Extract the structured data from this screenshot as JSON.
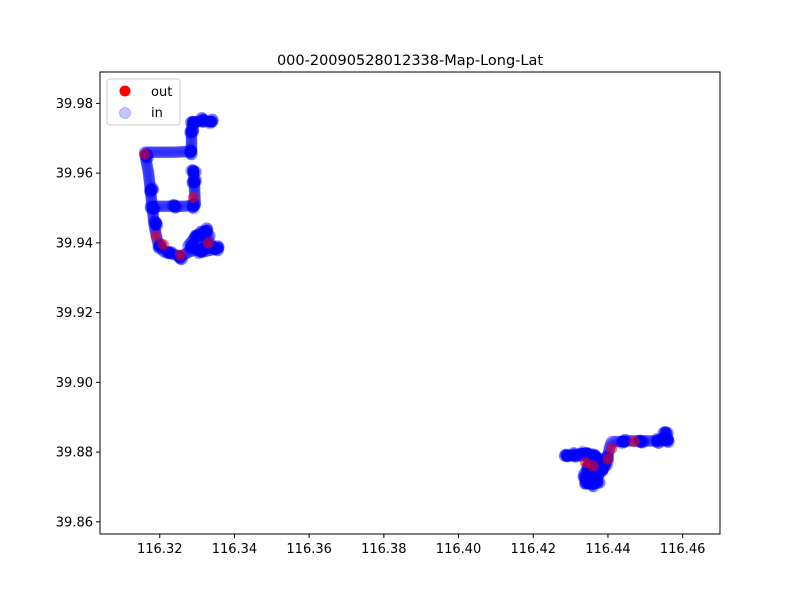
{
  "chart_data": {
    "type": "scatter",
    "title": "000-20090528012338-Map-Long-Lat",
    "xlabel": "",
    "ylabel": "",
    "xlim": [
      116.304,
      116.47
    ],
    "ylim": [
      39.8565,
      39.989
    ],
    "x_ticks": [
      116.32,
      116.34,
      116.36,
      116.38,
      116.4,
      116.42,
      116.44,
      116.46
    ],
    "x_tick_labels": [
      "116.32",
      "116.34",
      "116.36",
      "116.38",
      "116.40",
      "116.42",
      "116.44",
      "116.46"
    ],
    "y_ticks": [
      39.86,
      39.88,
      39.9,
      39.92,
      39.94,
      39.96,
      39.98
    ],
    "y_tick_labels": [
      "39.86",
      "39.88",
      "39.90",
      "39.92",
      "39.94",
      "39.96",
      "39.98"
    ],
    "grid": false,
    "legend_position": "top-left",
    "series": [
      {
        "name": "out",
        "color": "#ff0000",
        "alpha": 1.0,
        "points": [
          [
            116.316,
            39.9655
          ],
          [
            116.319,
            39.942
          ],
          [
            116.321,
            39.9395
          ],
          [
            116.329,
            39.953
          ],
          [
            116.333,
            39.94
          ],
          [
            116.3255,
            39.9365
          ],
          [
            116.434,
            39.877
          ],
          [
            116.436,
            39.876
          ],
          [
            116.44,
            39.878
          ],
          [
            116.441,
            39.881
          ],
          [
            116.447,
            39.883
          ]
        ]
      },
      {
        "name": "in",
        "color": "#0000ff",
        "alpha": 0.22,
        "points": []
      }
    ],
    "in_path": [
      [
        [
          116.316,
          39.9655
        ],
        [
          116.317,
          39.96
        ],
        [
          116.3175,
          39.955
        ],
        [
          116.318,
          39.95
        ],
        [
          116.3185,
          39.945
        ],
        [
          116.3195,
          39.94
        ],
        [
          116.321,
          39.9375
        ],
        [
          116.323,
          39.937
        ],
        [
          116.3255,
          39.936
        ],
        [
          116.328,
          39.9375
        ],
        [
          116.33,
          39.938
        ],
        [
          116.332,
          39.9385
        ],
        [
          116.3345,
          39.9385
        ]
      ],
      [
        [
          116.3175,
          39.9505
        ],
        [
          116.321,
          39.9505
        ],
        [
          116.324,
          39.9505
        ],
        [
          116.327,
          39.9505
        ],
        [
          116.3295,
          39.951
        ]
      ],
      [
        [
          116.3295,
          39.951
        ],
        [
          116.3293,
          39.956
        ],
        [
          116.329,
          39.9605
        ]
      ],
      [
        [
          116.316,
          39.966
        ],
        [
          116.32,
          39.966
        ],
        [
          116.324,
          39.966
        ],
        [
          116.3275,
          39.9662
        ],
        [
          116.3285,
          39.9665
        ]
      ],
      [
        [
          116.3285,
          39.9665
        ],
        [
          116.3285,
          39.97
        ],
        [
          116.3285,
          39.9725
        ],
        [
          116.3288,
          39.9745
        ],
        [
          116.331,
          39.975
        ],
        [
          116.3335,
          39.9748
        ]
      ],
      [
        [
          116.3275,
          39.939
        ],
        [
          116.329,
          39.941
        ],
        [
          116.3305,
          39.9425
        ],
        [
          116.332,
          39.943
        ],
        [
          116.3335,
          39.942
        ],
        [
          116.3315,
          39.94
        ],
        [
          116.3295,
          39.9385
        ],
        [
          116.332,
          39.9375
        ],
        [
          116.334,
          39.938
        ]
      ],
      [
        [
          116.4285,
          39.8788
        ],
        [
          116.43,
          39.879
        ],
        [
          116.432,
          39.879
        ],
        [
          116.434,
          39.8792
        ],
        [
          116.436,
          39.879
        ],
        [
          116.438,
          39.878
        ],
        [
          116.439,
          39.8765
        ],
        [
          116.4385,
          39.8745
        ],
        [
          116.437,
          39.873
        ],
        [
          116.4355,
          39.872
        ],
        [
          116.434,
          39.8718
        ],
        [
          116.4335,
          39.8735
        ],
        [
          116.4345,
          39.8752
        ],
        [
          116.436,
          39.876
        ],
        [
          116.4375,
          39.8758
        ],
        [
          116.4365,
          39.874
        ],
        [
          116.435,
          39.8725
        ],
        [
          116.4338,
          39.871
        ],
        [
          116.4355,
          39.871
        ],
        [
          116.437,
          39.872
        ]
      ],
      [
        [
          116.439,
          39.8765
        ],
        [
          116.44,
          39.879
        ],
        [
          116.4405,
          39.8815
        ],
        [
          116.441,
          39.883
        ],
        [
          116.443,
          39.883
        ],
        [
          116.445,
          39.8832
        ],
        [
          116.447,
          39.8832
        ],
        [
          116.449,
          39.8832
        ],
        [
          116.451,
          39.8832
        ],
        [
          116.453,
          39.8832
        ],
        [
          116.455,
          39.8835
        ],
        [
          116.456,
          39.8835
        ]
      ]
    ],
    "in_clusters": [
      [
        116.3165,
        39.965
      ],
      [
        116.3178,
        39.9552
      ],
      [
        116.3182,
        39.95
      ],
      [
        116.319,
        39.9455
      ],
      [
        116.32,
        39.939
      ],
      [
        116.3225,
        39.9372
      ],
      [
        116.3255,
        39.9358
      ],
      [
        116.3285,
        39.939
      ],
      [
        116.33,
        39.942
      ],
      [
        116.3315,
        39.9428
      ],
      [
        116.3325,
        39.9435
      ],
      [
        116.333,
        39.9395
      ],
      [
        116.3345,
        39.9385
      ],
      [
        116.3355,
        39.9385
      ],
      [
        116.331,
        39.9375
      ],
      [
        116.324,
        39.9505
      ],
      [
        116.329,
        39.9505
      ],
      [
        116.3292,
        39.9575
      ],
      [
        116.329,
        39.9605
      ],
      [
        116.3283,
        39.966
      ],
      [
        116.3286,
        39.972
      ],
      [
        116.329,
        39.9745
      ],
      [
        116.3315,
        39.9752
      ],
      [
        116.3338,
        39.9748
      ],
      [
        116.429,
        39.879
      ],
      [
        116.431,
        39.8792
      ],
      [
        116.433,
        39.8795
      ],
      [
        116.4345,
        39.8795
      ],
      [
        116.4365,
        39.8788
      ],
      [
        116.4378,
        39.8768
      ],
      [
        116.4382,
        39.875
      ],
      [
        116.4368,
        39.8735
      ],
      [
        116.4355,
        39.8722
      ],
      [
        116.4345,
        39.8712
      ],
      [
        116.434,
        39.8725
      ],
      [
        116.4348,
        39.8745
      ],
      [
        116.436,
        39.874
      ],
      [
        116.4372,
        39.8715
      ],
      [
        116.436,
        39.8708
      ],
      [
        116.435,
        39.8762
      ],
      [
        116.4392,
        39.8765
      ],
      [
        116.4398,
        39.878
      ],
      [
        116.4442,
        39.883
      ],
      [
        116.4488,
        39.883
      ],
      [
        116.4533,
        39.8832
      ],
      [
        116.4548,
        39.8838
      ],
      [
        116.4555,
        39.8855
      ],
      [
        116.456,
        39.8834
      ]
    ]
  }
}
